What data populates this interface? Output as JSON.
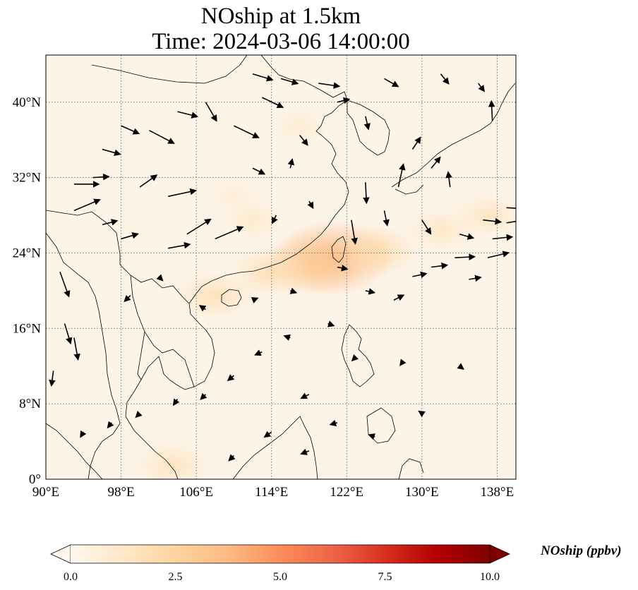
{
  "title": {
    "line1": "NOship at 1.5km",
    "line2": "Time: 2024-03-06 14:00:00"
  },
  "map": {
    "lon_range": [
      90,
      140
    ],
    "lat_range": [
      0,
      45
    ],
    "lon_ticks": [
      "90°E",
      "98°E",
      "106°E",
      "114°E",
      "122°E",
      "130°E",
      "138°E"
    ],
    "lat_ticks": [
      "0°",
      "8°N",
      "16°N",
      "24°N",
      "32°N",
      "40°N"
    ],
    "gridlines": "dotted",
    "background_color": "#fdf4e8",
    "coastline_color": "#000000",
    "wind_arrow_color": "#000000"
  },
  "colorbar": {
    "label": "NOship (ppbv)",
    "min": 0.0,
    "max": 10.0,
    "ticks": [
      "0.0",
      "2.5",
      "5.0",
      "7.5",
      "10.0"
    ],
    "colormap": "OrRd",
    "colors": [
      "#fff7ec",
      "#fee8c8",
      "#fdd49e",
      "#fdbb84",
      "#fc8d59",
      "#ef6548",
      "#d7301f",
      "#b30000",
      "#7f0000"
    ],
    "extend": "both"
  },
  "field_hotspots": [
    {
      "lon": 120.5,
      "lat": 23.5,
      "value": 4.0
    },
    {
      "lon": 118.5,
      "lat": 22.8,
      "value": 3.0
    },
    {
      "lon": 125.0,
      "lat": 24.2,
      "value": 2.2
    },
    {
      "lon": 114.0,
      "lat": 22.0,
      "value": 2.0
    },
    {
      "lon": 108.0,
      "lat": 19.5,
      "value": 1.8
    },
    {
      "lon": 112.0,
      "lat": 27.5,
      "value": 1.2
    },
    {
      "lon": 117.0,
      "lat": 37.5,
      "value": 1.0
    },
    {
      "lon": 132.0,
      "lat": 26.5,
      "value": 1.4
    },
    {
      "lon": 137.0,
      "lat": 28.0,
      "value": 1.5
    },
    {
      "lon": 103.5,
      "lat": 1.5,
      "value": 1.6
    },
    {
      "lon": 110.0,
      "lat": 30.0,
      "value": 0.8
    }
  ],
  "wind_vectors": [
    {
      "lon": 93,
      "lat": 31.3,
      "u": 2.5,
      "v": 0
    },
    {
      "lon": 93,
      "lat": 28.5,
      "u": 2.6,
      "v": 1.1
    },
    {
      "lon": 95,
      "lat": 32,
      "u": 1.6,
      "v": 0.1
    },
    {
      "lon": 96,
      "lat": 35,
      "u": 1.8,
      "v": -0.5
    },
    {
      "lon": 98,
      "lat": 37.5,
      "u": 1.8,
      "v": -0.8
    },
    {
      "lon": 101,
      "lat": 37,
      "u": 2.5,
      "v": -1.3
    },
    {
      "lon": 104,
      "lat": 39,
      "u": 2,
      "v": -0.5
    },
    {
      "lon": 107,
      "lat": 40,
      "u": 1.1,
      "v": -1.9
    },
    {
      "lon": 110,
      "lat": 37.5,
      "u": 2.5,
      "v": -1.2
    },
    {
      "lon": 113,
      "lat": 40.5,
      "u": 2.1,
      "v": -1.0
    },
    {
      "lon": 112,
      "lat": 43,
      "u": 2,
      "v": -0.6
    },
    {
      "lon": 115,
      "lat": 42.5,
      "u": 1.7,
      "v": -0.5
    },
    {
      "lon": 100,
      "lat": 31,
      "u": 1.7,
      "v": 1.2
    },
    {
      "lon": 103,
      "lat": 30,
      "u": 2.8,
      "v": 0.6
    },
    {
      "lon": 105,
      "lat": 26,
      "u": 2.4,
      "v": 1.5
    },
    {
      "lon": 103,
      "lat": 24.5,
      "u": 2.2,
      "v": 0.4
    },
    {
      "lon": 108,
      "lat": 25.5,
      "u": 2.8,
      "v": 1.2
    },
    {
      "lon": 98,
      "lat": 25.5,
      "u": 1.7,
      "v": 0.5
    },
    {
      "lon": 96,
      "lat": 27,
      "u": 1.5,
      "v": 0.4
    },
    {
      "lon": 91.5,
      "lat": 22,
      "u": 0.9,
      "v": -2.5
    },
    {
      "lon": 92,
      "lat": 16.5,
      "u": 0.6,
      "v": -2.0
    },
    {
      "lon": 93,
      "lat": 15,
      "u": 0.4,
      "v": -2.2
    },
    {
      "lon": 90.8,
      "lat": 11.5,
      "u": -0.2,
      "v": -1.5
    },
    {
      "lon": 117,
      "lat": 36.5,
      "u": 0.8,
      "v": -1.0
    },
    {
      "lon": 112,
      "lat": 33,
      "u": 1.2,
      "v": -0.6
    },
    {
      "lon": 119,
      "lat": 42,
      "u": 2.1,
      "v": -0.3
    },
    {
      "lon": 121,
      "lat": 40,
      "u": 1.2,
      "v": 0.3
    },
    {
      "lon": 124,
      "lat": 38.5,
      "u": 0.3,
      "v": -1.3
    },
    {
      "lon": 126,
      "lat": 42.5,
      "u": 1.4,
      "v": -0.8
    },
    {
      "lon": 132,
      "lat": 43,
      "u": 0.8,
      "v": -1.0
    },
    {
      "lon": 136,
      "lat": 42,
      "u": 0.6,
      "v": -0.8
    },
    {
      "lon": 137.5,
      "lat": 38,
      "u": -0.1,
      "v": 2.0
    },
    {
      "lon": 129,
      "lat": 35,
      "u": 0.8,
      "v": 1.2
    },
    {
      "lon": 127.5,
      "lat": 31,
      "u": 0.5,
      "v": 2.3
    },
    {
      "lon": 131,
      "lat": 33,
      "u": 0.9,
      "v": 1.1
    },
    {
      "lon": 133,
      "lat": 31,
      "u": -0.2,
      "v": 1.5
    },
    {
      "lon": 124,
      "lat": 31.5,
      "u": 0.1,
      "v": -2.1
    },
    {
      "lon": 122.5,
      "lat": 27.5,
      "u": 0.4,
      "v": -2.4
    },
    {
      "lon": 126,
      "lat": 28.5,
      "u": 0.3,
      "v": -1.5
    },
    {
      "lon": 130,
      "lat": 27.5,
      "u": 0.9,
      "v": -1.4
    },
    {
      "lon": 134,
      "lat": 26,
      "u": 1.4,
      "v": -0.4
    },
    {
      "lon": 136.5,
      "lat": 27.5,
      "u": 1.8,
      "v": -0.2
    },
    {
      "lon": 137.5,
      "lat": 25.5,
      "u": 2.0,
      "v": 0.2
    },
    {
      "lon": 137,
      "lat": 23.5,
      "u": 2.1,
      "v": 0.5
    },
    {
      "lon": 139,
      "lat": 28.8,
      "u": 1.8,
      "v": -0.1
    },
    {
      "lon": 139,
      "lat": 27.2,
      "u": 2.0,
      "v": 0.3
    },
    {
      "lon": 133.5,
      "lat": 23.5,
      "u": 2.0,
      "v": 0.1
    },
    {
      "lon": 131,
      "lat": 22.5,
      "u": 1.6,
      "v": 0.2
    },
    {
      "lon": 129,
      "lat": 21.5,
      "u": 1.4,
      "v": 0.3
    },
    {
      "lon": 135,
      "lat": 21.2,
      "u": 1.2,
      "v": 0.2
    },
    {
      "lon": 121,
      "lat": 22.5,
      "u": 1.0,
      "v": -0.2
    },
    {
      "lon": 124,
      "lat": 20,
      "u": 0.9,
      "v": -0.2
    },
    {
      "lon": 127,
      "lat": 19,
      "u": 1.0,
      "v": 0.5
    },
    {
      "lon": 120,
      "lat": 16.5,
      "u": 0.6,
      "v": -0.2
    },
    {
      "lon": 116,
      "lat": 15,
      "u": -0.6,
      "v": 0.2
    },
    {
      "lon": 113,
      "lat": 13.5,
      "u": -0.7,
      "v": -0.3
    },
    {
      "lon": 110,
      "lat": 11,
      "u": -0.6,
      "v": -0.5
    },
    {
      "lon": 107,
      "lat": 9,
      "u": -0.5,
      "v": -0.5
    },
    {
      "lon": 104,
      "lat": 8.5,
      "u": -0.4,
      "v": -0.6
    },
    {
      "lon": 100,
      "lat": 7,
      "u": -0.4,
      "v": -0.4
    },
    {
      "lon": 97,
      "lat": 6,
      "u": -0.4,
      "v": -0.5
    },
    {
      "lon": 94,
      "lat": 5,
      "u": -0.3,
      "v": -0.5
    },
    {
      "lon": 118,
      "lat": 9,
      "u": -0.8,
      "v": -0.4
    },
    {
      "lon": 121,
      "lat": 6,
      "u": -0.7,
      "v": -0.2
    },
    {
      "lon": 125,
      "lat": 4.5,
      "u": -0.6,
      "v": 0.2
    },
    {
      "lon": 118,
      "lat": 3,
      "u": -0.8,
      "v": -0.3
    },
    {
      "lon": 114,
      "lat": 5,
      "u": -0.7,
      "v": -0.5
    },
    {
      "lon": 110,
      "lat": 2.5,
      "u": -0.5,
      "v": -0.5
    },
    {
      "lon": 130,
      "lat": 7,
      "u": -0.3,
      "v": 0.2
    },
    {
      "lon": 134,
      "lat": 12,
      "u": 0.4,
      "v": -0.3
    },
    {
      "lon": 128,
      "lat": 12.5,
      "u": -0.3,
      "v": -0.4
    },
    {
      "lon": 123,
      "lat": 13,
      "u": -0.4,
      "v": -0.4
    },
    {
      "lon": 99,
      "lat": 19.5,
      "u": -0.6,
      "v": -0.6
    },
    {
      "lon": 102,
      "lat": 21.5,
      "u": 0.4,
      "v": -0.4
    },
    {
      "lon": 107,
      "lat": 18,
      "u": -0.6,
      "v": 0.4
    },
    {
      "lon": 112,
      "lat": 19,
      "u": 0.5,
      "v": 0.2
    },
    {
      "lon": 116,
      "lat": 20,
      "u": 0.6,
      "v": -0.2
    },
    {
      "lon": 114.5,
      "lat": 28,
      "u": -0.4,
      "v": -0.8
    },
    {
      "lon": 118,
      "lat": 29.5,
      "u": 0.4,
      "v": -0.7
    },
    {
      "lon": 116,
      "lat": 33,
      "u": 0.2,
      "v": 0.9
    }
  ]
}
